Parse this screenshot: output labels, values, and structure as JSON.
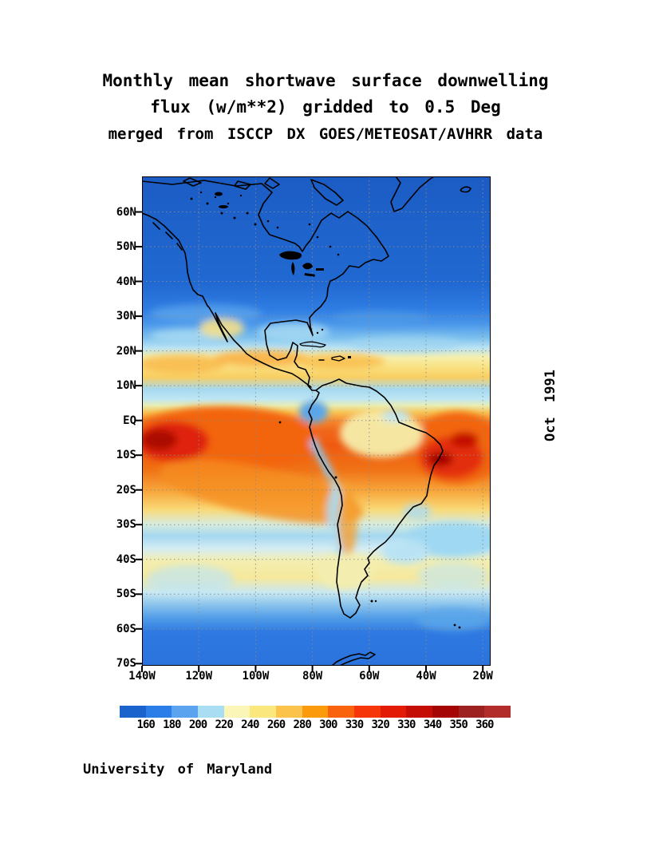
{
  "title": {
    "line1": "Monthly mean shortwave surface downwelling",
    "line2": "flux (w/m**2) gridded to 0.5 Deg",
    "line3": "merged from ISCCP DX GOES/METEOSAT/AVHRR data"
  },
  "side_label": "Oct 1991",
  "credit": "University of Maryland",
  "map": {
    "lat_labels": [
      "60N",
      "50N",
      "40N",
      "30N",
      "20N",
      "10N",
      "EQ",
      "10S",
      "20S",
      "30S",
      "40S",
      "50S",
      "60S",
      "70S"
    ],
    "lon_labels": [
      "140W",
      "120W",
      "100W",
      "80W",
      "60W",
      "40W",
      "20W"
    ]
  },
  "colorbar": {
    "tick_labels": [
      "160",
      "180",
      "200",
      "220",
      "240",
      "260",
      "280",
      "300",
      "330",
      "320",
      "330",
      "340",
      "350",
      "360"
    ],
    "segment_colors": [
      "#1a62cc",
      "#2b7de8",
      "#5ba3ee",
      "#a9ddf2",
      "#faf6b8",
      "#fae87e",
      "#fbc34c",
      "#fb9a0a",
      "#f9630e",
      "#f63508",
      "#e31a06",
      "#c40d05",
      "#a50505",
      "#9e2121",
      "#b32c2c"
    ]
  },
  "chart_data": {
    "type": "heatmap",
    "title": "Monthly mean shortwave surface downwelling flux (w/m**2) gridded to 0.5 Deg",
    "subtitle": "merged from ISCCP DX GOES/METEOSAT/AVHRR data",
    "period": "Oct 1991",
    "source": "University of Maryland",
    "units": "w/m**2",
    "grid_resolution_deg": 0.5,
    "region": "Americas, 140W-20W, 70S-70N",
    "lon_ticks": [
      "140W",
      "120W",
      "100W",
      "80W",
      "60W",
      "40W",
      "20W"
    ],
    "lat_ticks": [
      "60N",
      "50N",
      "40N",
      "30N",
      "20N",
      "10N",
      "EQ",
      "10S",
      "20S",
      "30S",
      "40S",
      "50S",
      "60S",
      "70S"
    ],
    "colorbar_tick_labels_as_printed": [
      160,
      180,
      200,
      220,
      240,
      260,
      280,
      300,
      330,
      320,
      330,
      340,
      350,
      360
    ],
    "colorbar_colors": [
      "#1a62cc",
      "#2b7de8",
      "#5ba3ee",
      "#a9ddf2",
      "#faf6b8",
      "#fae87e",
      "#fbc34c",
      "#fb9a0a",
      "#f9630e",
      "#f63508",
      "#e31a06",
      "#c40d05",
      "#a50505",
      "#9e2121",
      "#b32c2c"
    ],
    "approx_zonal_mean_flux": [
      {
        "lat": "70N",
        "wm2": 165
      },
      {
        "lat": "60N",
        "wm2": 160
      },
      {
        "lat": "50N",
        "wm2": 165
      },
      {
        "lat": "40N",
        "wm2": 175
      },
      {
        "lat": "30N",
        "wm2": 195
      },
      {
        "lat": "25N",
        "wm2": 215
      },
      {
        "lat": "20N",
        "wm2": 245
      },
      {
        "lat": "15N",
        "wm2": 255
      },
      {
        "lat": "10N",
        "wm2": 215
      },
      {
        "lat": "5N",
        "wm2": 235
      },
      {
        "lat": "EQ",
        "wm2": 285
      },
      {
        "lat": "5S",
        "wm2": 305
      },
      {
        "lat": "10S",
        "wm2": 300
      },
      {
        "lat": "15S",
        "wm2": 290
      },
      {
        "lat": "20S",
        "wm2": 270
      },
      {
        "lat": "25S",
        "wm2": 240
      },
      {
        "lat": "30S",
        "wm2": 215
      },
      {
        "lat": "35S",
        "wm2": 225
      },
      {
        "lat": "40S",
        "wm2": 235
      },
      {
        "lat": "45S",
        "wm2": 230
      },
      {
        "lat": "50S",
        "wm2": 205
      },
      {
        "lat": "55S",
        "wm2": 185
      },
      {
        "lat": "60S",
        "wm2": 170
      },
      {
        "lat": "70S",
        "wm2": 165
      }
    ],
    "notable_features": [
      {
        "region": "Equatorial Pacific near 130W, 0-10S",
        "wm2": 340,
        "note": "dark red maximum"
      },
      {
        "region": "Tropical South Atlantic / NE Brazil near 35W, 5-15S",
        "wm2": 340,
        "note": "dark red maximum"
      },
      {
        "region": "Andes and west coast of South America",
        "wm2": 200,
        "note": "light blue low band"
      },
      {
        "region": "ITCZ band 5-10N",
        "wm2": 215,
        "note": "reduced flux (light blue band)"
      },
      {
        "region": "Amazon basin",
        "wm2": 245,
        "note": "pale yellow"
      },
      {
        "region": "Oceans north of 40N and south of 55S",
        "wm2": 160,
        "note": "deep blue minimum"
      }
    ]
  }
}
